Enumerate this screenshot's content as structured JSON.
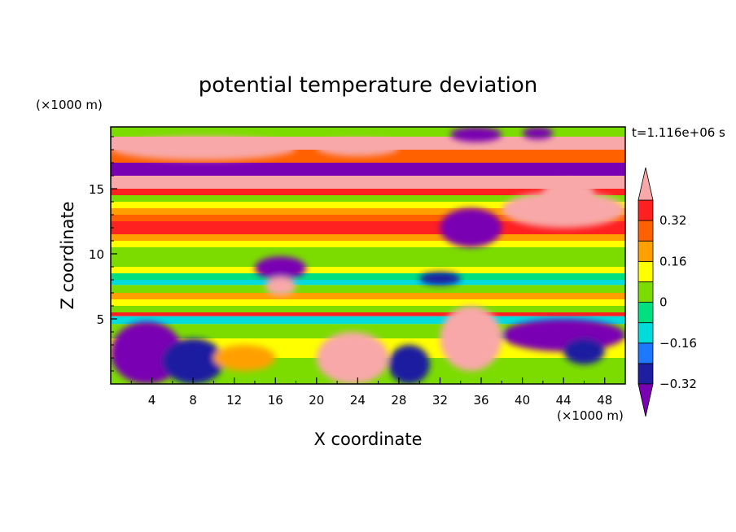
{
  "chart_data": {
    "type": "heatmap",
    "title": "potential temperature deviation",
    "xlabel": "X coordinate",
    "ylabel": "Z coordinate",
    "x_unit": "(×1000 m)",
    "y_unit": "(×1000 m)",
    "time_label": "t=1.116e+06 s",
    "xlim": [
      0,
      50
    ],
    "ylim": [
      0,
      19.75
    ],
    "x_ticks": [
      4,
      8,
      12,
      16,
      20,
      24,
      28,
      32,
      36,
      40,
      44,
      48
    ],
    "y_ticks": [
      5,
      10,
      15
    ],
    "x_tick_labels": [
      "4",
      "8",
      "12",
      "16",
      "20",
      "24",
      "28",
      "32",
      "36",
      "40",
      "44",
      "48"
    ],
    "y_tick_labels": [
      "5",
      "10",
      "15"
    ],
    "colorbar": {
      "levels": [
        -0.4,
        -0.32,
        -0.24,
        -0.16,
        -0.08,
        0,
        0.08,
        0.16,
        0.24,
        0.32,
        0.4
      ],
      "colors": [
        "#7a00b4",
        "#1e1ea0",
        "#1e78ff",
        "#00dcdc",
        "#00e080",
        "#7cdc00",
        "#ffff00",
        "#ffa000",
        "#ff6000",
        "#ff2020",
        "#f8a8a8"
      ],
      "tick_labels": [
        "0.32",
        "0.16",
        "0",
        "−0.16",
        "−0.32"
      ],
      "extend": "both"
    },
    "field_bands": [
      {
        "z_from": 19.0,
        "z_to": 19.75,
        "value": 0.05
      },
      {
        "z_from": 18.0,
        "z_to": 19.0,
        "value": 0.45
      },
      {
        "z_from": 17.0,
        "z_to": 18.0,
        "value": 0.28
      },
      {
        "z_from": 16.0,
        "z_to": 17.0,
        "value": -0.45
      },
      {
        "z_from": 15.0,
        "z_to": 16.0,
        "value": 0.45
      },
      {
        "z_from": 14.5,
        "z_to": 15.0,
        "value": 0.33
      },
      {
        "z_from": 14.0,
        "z_to": 14.5,
        "value": 0.05
      },
      {
        "z_from": 13.5,
        "z_to": 14.0,
        "value": 0.12
      },
      {
        "z_from": 13.0,
        "z_to": 13.5,
        "value": 0.2
      },
      {
        "z_from": 12.5,
        "z_to": 13.0,
        "value": 0.28
      },
      {
        "z_from": 11.5,
        "z_to": 12.5,
        "value": 0.36
      },
      {
        "z_from": 11.0,
        "z_to": 11.5,
        "value": 0.22
      },
      {
        "z_from": 10.5,
        "z_to": 11.0,
        "value": 0.12
      },
      {
        "z_from": 10.0,
        "z_to": 10.5,
        "value": 0.04
      },
      {
        "z_from": 9.5,
        "z_to": 10.0,
        "value": 0.0
      },
      {
        "z_from": 9.0,
        "z_to": 9.5,
        "value": 0.04
      },
      {
        "z_from": 8.5,
        "z_to": 9.0,
        "value": 0.13
      },
      {
        "z_from": 8.0,
        "z_to": 8.5,
        "value": -0.04
      },
      {
        "z_from": 7.6,
        "z_to": 8.0,
        "value": -0.14
      },
      {
        "z_from": 7.0,
        "z_to": 7.6,
        "value": 0.04
      },
      {
        "z_from": 6.5,
        "z_to": 7.0,
        "value": 0.2
      },
      {
        "z_from": 6.0,
        "z_to": 6.5,
        "value": 0.12
      },
      {
        "z_from": 5.5,
        "z_to": 6.0,
        "value": 0.04
      },
      {
        "z_from": 5.2,
        "z_to": 5.5,
        "value": 0.33
      },
      {
        "z_from": 4.6,
        "z_to": 5.2,
        "value": -0.12
      },
      {
        "z_from": 3.5,
        "z_to": 4.6,
        "value": 0.04
      },
      {
        "z_from": 2.0,
        "z_to": 3.5,
        "value": 0.15
      },
      {
        "z_from": 0.0,
        "z_to": 2.0,
        "value": 0.04
      }
    ],
    "field_features": [
      {
        "x": [
          0,
          18
        ],
        "z": [
          17.2,
          19.0
        ],
        "value": 0.45
      },
      {
        "x": [
          20,
          28
        ],
        "z": [
          17.5,
          18.8
        ],
        "value": 0.45
      },
      {
        "x": [
          33,
          38
        ],
        "z": [
          18.6,
          19.75
        ],
        "value": -0.45
      },
      {
        "x": [
          40,
          43
        ],
        "z": [
          18.8,
          19.75
        ],
        "value": -0.45
      },
      {
        "x": [
          42,
          47
        ],
        "z": [
          14.0,
          15.6
        ],
        "value": 0.45
      },
      {
        "x": [
          32,
          38
        ],
        "z": [
          10.5,
          13.5
        ],
        "value": -0.45
      },
      {
        "x": [
          38,
          50
        ],
        "z": [
          12.0,
          14.8
        ],
        "value": 0.45
      },
      {
        "x": [
          14,
          19
        ],
        "z": [
          8.0,
          9.8
        ],
        "value": -0.45
      },
      {
        "x": [
          15,
          18
        ],
        "z": [
          6.8,
          8.2
        ],
        "value": 0.45
      },
      {
        "x": [
          30,
          34
        ],
        "z": [
          7.6,
          8.6
        ],
        "value": -0.28
      },
      {
        "x": [
          32,
          38
        ],
        "z": [
          1.0,
          6.0
        ],
        "value": 0.45
      },
      {
        "x": [
          38,
          50
        ],
        "z": [
          2.5,
          5.0
        ],
        "value": -0.45
      },
      {
        "x": [
          0,
          7
        ],
        "z": [
          0.0,
          4.8
        ],
        "value": -0.45
      },
      {
        "x": [
          5,
          11
        ],
        "z": [
          0.0,
          3.5
        ],
        "value": -0.3
      },
      {
        "x": [
          20,
          27
        ],
        "z": [
          0.0,
          4.0
        ],
        "value": 0.45
      },
      {
        "x": [
          27,
          31
        ],
        "z": [
          0.0,
          3.0
        ],
        "value": -0.28
      },
      {
        "x": [
          44,
          48
        ],
        "z": [
          1.5,
          3.5
        ],
        "value": -0.32
      },
      {
        "x": [
          10,
          16
        ],
        "z": [
          1.0,
          3.0
        ],
        "value": 0.2
      }
    ]
  }
}
